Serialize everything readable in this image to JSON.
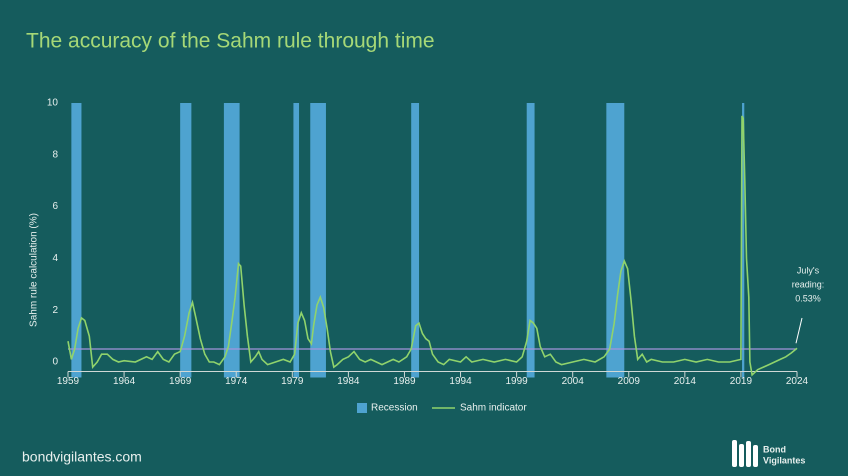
{
  "chart_data": {
    "type": "line",
    "title": "The accuracy of the Sahm rule through time",
    "y_label": "Sahm rule calculation (%)",
    "xlim": [
      1959,
      2024
    ],
    "xticks": [
      1959,
      1964,
      1969,
      1974,
      1979,
      1984,
      1989,
      1994,
      1999,
      2004,
      2009,
      2014,
      2019,
      2024
    ],
    "ylim": [
      -0.6,
      10
    ],
    "yticks": [
      0,
      2,
      4,
      6,
      8,
      10
    ],
    "recessions": {
      "name": "Recession",
      "color": "#4ea3d0",
      "start": [
        1959.3,
        1969.0,
        1972.9,
        1979.1,
        1980.6,
        1989.6,
        1999.9,
        2007.0,
        2019.1
      ],
      "end": [
        1960.2,
        1970.0,
        1974.3,
        1979.6,
        1982.0,
        1990.3,
        2000.6,
        2008.6,
        2019.3
      ]
    },
    "reference_line": {
      "value": 0.5,
      "color": "#a394dc"
    },
    "x": [
      1959.0,
      1959.3,
      1959.6,
      1959.9,
      1960.2,
      1960.5,
      1960.9,
      1961.2,
      1961.6,
      1962.0,
      1962.5,
      1963.0,
      1963.5,
      1964.0,
      1965.0,
      1966.0,
      1966.5,
      1967.0,
      1967.5,
      1968.0,
      1968.5,
      1969.0,
      1969.4,
      1969.8,
      1970.1,
      1970.4,
      1970.8,
      1971.2,
      1971.6,
      1972.0,
      1972.5,
      1973.0,
      1973.3,
      1973.6,
      1973.9,
      1974.2,
      1974.4,
      1974.7,
      1975.0,
      1975.3,
      1975.7,
      1976.0,
      1976.3,
      1976.8,
      1977.5,
      1978.2,
      1978.8,
      1979.2,
      1979.5,
      1979.8,
      1980.1,
      1980.4,
      1980.7,
      1980.9,
      1981.2,
      1981.5,
      1981.8,
      1982.1,
      1982.4,
      1982.7,
      1983.0,
      1983.5,
      1984.0,
      1984.5,
      1985.0,
      1985.5,
      1986.0,
      1986.5,
      1987.0,
      1988.0,
      1988.5,
      1989.2,
      1989.6,
      1990.0,
      1990.3,
      1990.6,
      1990.9,
      1991.2,
      1991.5,
      1992.0,
      1992.5,
      1993.0,
      1994.0,
      1994.5,
      1995.0,
      1996.0,
      1997.0,
      1998.0,
      1999.0,
      1999.5,
      1999.9,
      2000.2,
      2000.5,
      2000.8,
      2001.1,
      2001.5,
      2002.0,
      2002.5,
      2003.0,
      2004.0,
      2005.0,
      2006.0,
      2006.8,
      2007.3,
      2007.7,
      2008.0,
      2008.3,
      2008.6,
      2008.9,
      2009.2,
      2009.5,
      2009.8,
      2010.2,
      2010.6,
      2011.0,
      2012.0,
      2013.0,
      2014.0,
      2015.0,
      2016.0,
      2017.0,
      2018.0,
      2019.0,
      2019.1,
      2019.2,
      2019.35,
      2019.5,
      2019.7,
      2019.8,
      2020.0,
      2020.5,
      2021.0,
      2021.5,
      2022.0,
      2022.5,
      2023.0,
      2023.5,
      2024.0
    ],
    "series": [
      {
        "name": "Sahm indicator",
        "color": "#90d36c",
        "values": [
          0.8,
          0.1,
          0.5,
          1.3,
          1.7,
          1.6,
          1.0,
          -0.2,
          0.0,
          0.3,
          0.3,
          0.1,
          0.0,
          0.05,
          0.0,
          0.2,
          0.1,
          0.4,
          0.1,
          0.0,
          0.3,
          0.4,
          1.0,
          1.9,
          2.3,
          1.7,
          0.9,
          0.3,
          0.0,
          0.0,
          -0.1,
          0.2,
          0.6,
          1.5,
          2.5,
          3.8,
          3.7,
          2.2,
          1.0,
          0.0,
          0.2,
          0.4,
          0.1,
          -0.1,
          0.0,
          0.1,
          0.0,
          0.3,
          1.5,
          1.9,
          1.6,
          0.9,
          0.7,
          1.4,
          2.2,
          2.5,
          2.1,
          1.3,
          0.4,
          -0.2,
          -0.1,
          0.1,
          0.2,
          0.4,
          0.1,
          0.0,
          0.1,
          0.0,
          -0.1,
          0.1,
          0.0,
          0.2,
          0.5,
          1.4,
          1.5,
          1.1,
          0.9,
          0.8,
          0.3,
          0.0,
          -0.1,
          0.1,
          0.0,
          0.2,
          0.0,
          0.1,
          0.0,
          0.1,
          0.0,
          0.2,
          0.8,
          1.6,
          1.5,
          1.3,
          0.6,
          0.2,
          0.3,
          0.0,
          -0.1,
          0.0,
          0.1,
          0.0,
          0.2,
          0.5,
          1.5,
          2.6,
          3.5,
          3.9,
          3.6,
          2.4,
          1.0,
          0.1,
          0.3,
          0.0,
          0.1,
          0.0,
          0.0,
          0.1,
          0.0,
          0.1,
          0.0,
          0.0,
          0.1,
          9.5,
          9.4,
          7.0,
          4.0,
          2.5,
          0.0,
          -0.5,
          -0.3,
          -0.2,
          -0.1,
          0.0,
          0.1,
          0.2,
          0.35,
          0.53
        ]
      }
    ],
    "annotation": [
      "July's",
      "reading:",
      "0.53%"
    ]
  },
  "footer": {
    "site": "bondvigilantes.com",
    "logo": [
      "Bond",
      "Vigilantes"
    ]
  }
}
